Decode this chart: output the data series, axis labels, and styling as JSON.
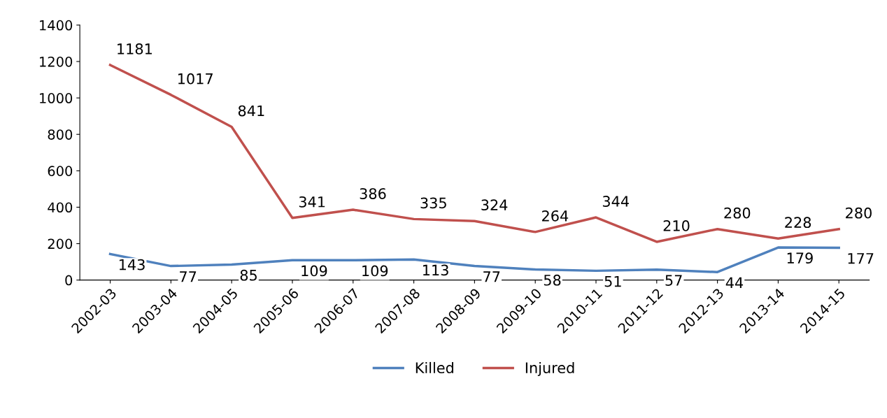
{
  "chart_data": {
    "type": "line",
    "categories": [
      "2002-03",
      "2003-04",
      "2004-05",
      "2005-06",
      "2006-07",
      "2007-08",
      "2008-09",
      "2009-10",
      "2010-11",
      "2011-12",
      "2012-13",
      "2013-14",
      "2014-15"
    ],
    "series": [
      {
        "name": "Killed",
        "color": "#4f81bd",
        "values": [
          143,
          77,
          85,
          109,
          109,
          113,
          77,
          58,
          51,
          57,
          44,
          179,
          177
        ]
      },
      {
        "name": "Injured",
        "color": "#c0504d",
        "values": [
          1181,
          1017,
          841,
          341,
          386,
          335,
          324,
          264,
          344,
          210,
          280,
          228,
          280
        ]
      }
    ],
    "ylim": [
      0,
      1400
    ],
    "yticks": [
      0,
      200,
      400,
      600,
      800,
      1000,
      1200,
      1400
    ],
    "data_labels": true,
    "legend": "bottom",
    "grid": false,
    "marker": "none"
  }
}
